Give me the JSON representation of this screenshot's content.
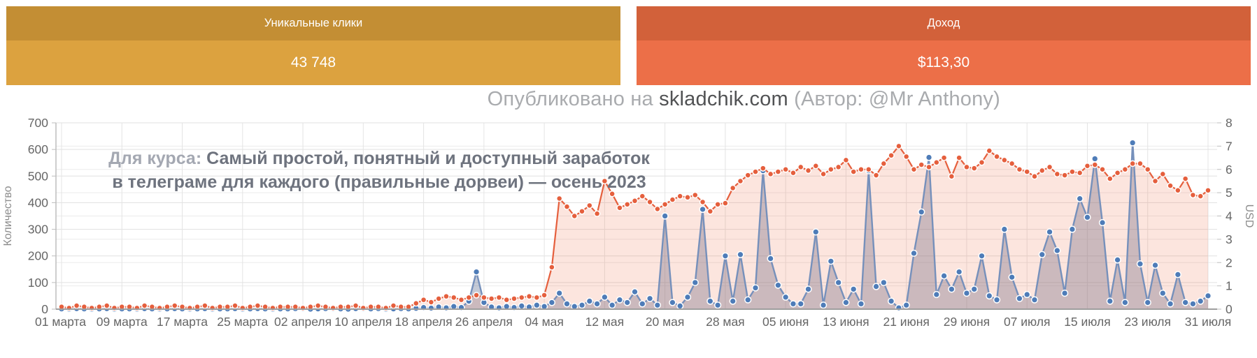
{
  "cards": [
    {
      "title": "Уникальные клики",
      "value": "43 748",
      "header_color": "#c38e34",
      "body_color": "#dca23f"
    },
    {
      "title": "Доход",
      "value": "$113,30",
      "header_color": "#d2613a",
      "body_color": "#ec6f48"
    }
  ],
  "watermark": {
    "prefix": "Опубликовано на ",
    "site": "skladchik.com",
    "suffix": " (Автор: @Mr Anthony)"
  },
  "chart_data": {
    "type": "line",
    "annotation": {
      "prefix": "Для курса: ",
      "line1": "Самый простой, понятный и доступный заработок",
      "line2": "в телеграме для каждого (правильные дорвеи) — осень 2023"
    },
    "x_tick_labels": [
      "01 марта",
      "09 марта",
      "17 марта",
      "25 марта",
      "02 апреля",
      "10 апреля",
      "18 апреля",
      "26 апреля",
      "04 мая",
      "12 мая",
      "20 мая",
      "28 мая",
      "05 июня",
      "13 июня",
      "21 июня",
      "29 июня",
      "07 июля",
      "15 июля",
      "23 июля",
      "31 июля"
    ],
    "x_tick_step_days": 8,
    "days_total": 153,
    "left_axis": {
      "label": "Количество",
      "min": 0,
      "max": 700,
      "step": 100
    },
    "right_axis": {
      "label": "USD",
      "min": 0,
      "max": 8,
      "step": 1
    },
    "grid": true,
    "legend_position": "none",
    "colors": {
      "clicks_line": "#7690bb",
      "clicks_dot": "#4e7cb8",
      "clicks_fill": "rgba(100,115,150,0.38)",
      "income_line": "#e55f3d",
      "income_dot": "#e55f3d",
      "income_fill": "rgba(236,111,72,0.18)",
      "grid_major": "#e0e0e0",
      "grid_minor": "#ebebeb",
      "axis_line": "#9e9e9e",
      "tick_text": "#666666"
    },
    "series": [
      {
        "name": "Уникальные клики",
        "axis": "left",
        "values": [
          1,
          0,
          2,
          1,
          0,
          1,
          2,
          0,
          1,
          1,
          0,
          2,
          1,
          0,
          1,
          2,
          1,
          0,
          1,
          2,
          0,
          1,
          1,
          2,
          0,
          1,
          2,
          1,
          0,
          1,
          1,
          2,
          1,
          0,
          1,
          2,
          1,
          1,
          0,
          2,
          1,
          1,
          2,
          0,
          1,
          2,
          1,
          3,
          6,
          4,
          8,
          5,
          10,
          6,
          30,
          140,
          25,
          8,
          5,
          10,
          6,
          12,
          8,
          15,
          10,
          25,
          60,
          20,
          10,
          15,
          30,
          20,
          45,
          15,
          35,
          25,
          65,
          20,
          40,
          15,
          350,
          25,
          12,
          45,
          100,
          375,
          30,
          15,
          200,
          30,
          205,
          35,
          80,
          520,
          190,
          90,
          45,
          20,
          20,
          75,
          290,
          15,
          180,
          100,
          25,
          75,
          20,
          520,
          85,
          100,
          30,
          5,
          15,
          210,
          365,
          570,
          55,
          125,
          75,
          140,
          60,
          75,
          200,
          50,
          35,
          300,
          120,
          40,
          55,
          35,
          205,
          290,
          220,
          60,
          300,
          415,
          345,
          565,
          325,
          30,
          185,
          25,
          625,
          170,
          25,
          165,
          60,
          20,
          130,
          25,
          20,
          30,
          50
        ]
      },
      {
        "name": "Доход",
        "axis": "right",
        "values": [
          0.1,
          0.05,
          0.15,
          0.1,
          0.05,
          0.1,
          0.15,
          0.05,
          0.1,
          0.1,
          0.05,
          0.15,
          0.1,
          0.05,
          0.1,
          0.15,
          0.1,
          0.05,
          0.1,
          0.15,
          0.05,
          0.1,
          0.1,
          0.15,
          0.05,
          0.1,
          0.15,
          0.1,
          0.05,
          0.1,
          0.1,
          0.1,
          0.05,
          0.1,
          0.15,
          0.1,
          0.05,
          0.1,
          0.1,
          0.15,
          0.05,
          0.1,
          0.1,
          0.05,
          0.15,
          0.1,
          0.1,
          0.25,
          0.4,
          0.3,
          0.45,
          0.55,
          0.5,
          0.4,
          0.5,
          0.6,
          0.5,
          0.45,
          0.5,
          0.4,
          0.45,
          0.5,
          0.55,
          0.5,
          0.6,
          1.8,
          4.75,
          4.4,
          4.0,
          4.2,
          4.45,
          4.1,
          5.5,
          4.95,
          4.35,
          4.5,
          4.65,
          4.85,
          4.6,
          4.3,
          4.5,
          4.7,
          4.85,
          4.8,
          4.9,
          4.6,
          4.2,
          4.5,
          4.55,
          5.2,
          5.5,
          5.75,
          5.9,
          6.05,
          5.8,
          5.9,
          6.0,
          5.85,
          6.1,
          5.95,
          6.15,
          5.8,
          6.0,
          6.1,
          6.4,
          5.9,
          6.0,
          6.0,
          5.75,
          6.25,
          6.6,
          7.0,
          6.55,
          6.0,
          6.2,
          6.1,
          6.3,
          6.5,
          5.7,
          6.5,
          6.1,
          6.05,
          6.3,
          6.8,
          6.55,
          6.4,
          6.25,
          6.0,
          5.9,
          5.7,
          5.95,
          6.1,
          5.8,
          5.75,
          5.9,
          5.85,
          6.15,
          6.2,
          6.0,
          5.6,
          5.85,
          6.0,
          6.25,
          6.25,
          6.0,
          5.5,
          5.8,
          5.3,
          5.1,
          5.6,
          4.9,
          4.85,
          5.1
        ]
      }
    ]
  }
}
